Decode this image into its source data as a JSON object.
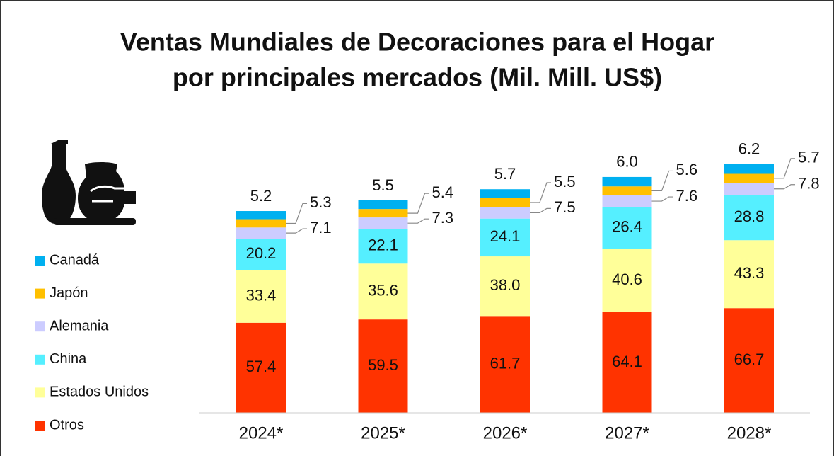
{
  "chart_data": {
    "type": "stacked_bar",
    "title": [
      "Ventas Mundiales de Decoraciones para el Hogar",
      "por principales mercados (Mil. Mill. US$)"
    ],
    "categories": [
      "2024*",
      "2025*",
      "2026*",
      "2027*",
      "2028*"
    ],
    "series": [
      {
        "name": "Otros",
        "color": "#ff3300",
        "values": [
          57.4,
          59.5,
          61.7,
          64.1,
          66.7
        ]
      },
      {
        "name": "Estados Unidos",
        "color": "#ffff99",
        "values": [
          33.4,
          35.6,
          38.0,
          40.6,
          43.3
        ],
        "value_labels": [
          "33.4",
          "35.6",
          "38.0",
          "40.6",
          "43.3"
        ]
      },
      {
        "name": "China",
        "color": "#55efff",
        "values": [
          20.2,
          22.1,
          24.1,
          26.4,
          28.8
        ]
      },
      {
        "name": "Alemania",
        "color": "#ccccff",
        "values": [
          7.1,
          7.3,
          7.5,
          7.6,
          7.8
        ]
      },
      {
        "name": "Japón",
        "color": "#ffc000",
        "values": [
          5.3,
          5.4,
          5.5,
          5.6,
          5.7
        ]
      },
      {
        "name": "Canadá",
        "color": "#00b0f0",
        "values": [
          5.2,
          5.5,
          5.7,
          6.0,
          6.2
        ],
        "value_labels": [
          "5.2",
          "5.5",
          "5.7",
          "6.0",
          "6.2"
        ]
      }
    ]
  }
}
